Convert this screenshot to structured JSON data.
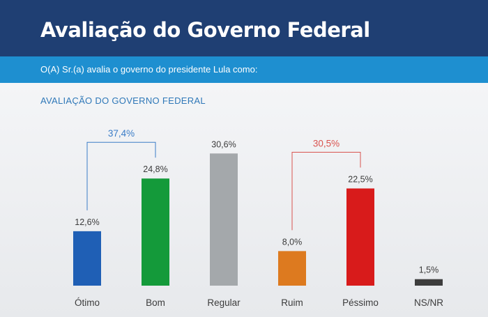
{
  "header": {
    "title": "Avaliação do Governo Federal",
    "question": "O(A) Sr.(a) avalia o governo do presidente Lula como:"
  },
  "chart_data": {
    "type": "bar",
    "title": "AVALIAÇÃO DO GOVERNO FEDERAL",
    "xlabel": "",
    "ylabel": "",
    "categories": [
      "Ótimo",
      "Bom",
      "Regular",
      "Ruim",
      "Péssimo",
      "NS/NR"
    ],
    "values": [
      12.6,
      24.8,
      30.6,
      8.0,
      22.5,
      1.5
    ],
    "value_labels": [
      "12,6%",
      "24,8%",
      "30,6%",
      "8,0%",
      "22,5%",
      "1,5%"
    ],
    "colors": [
      "#1f5fb5",
      "#149a3a",
      "#a4a8ab",
      "#dd7a1f",
      "#d81b1b",
      "#3d3d3d"
    ],
    "grid": false,
    "legend": "none",
    "brackets": [
      {
        "label": "37,4%",
        "from": 0,
        "to": 1,
        "color": "#3a7cc7"
      },
      {
        "label": "30,5%",
        "from": 3,
        "to": 4,
        "color": "#d9534f"
      }
    ]
  }
}
